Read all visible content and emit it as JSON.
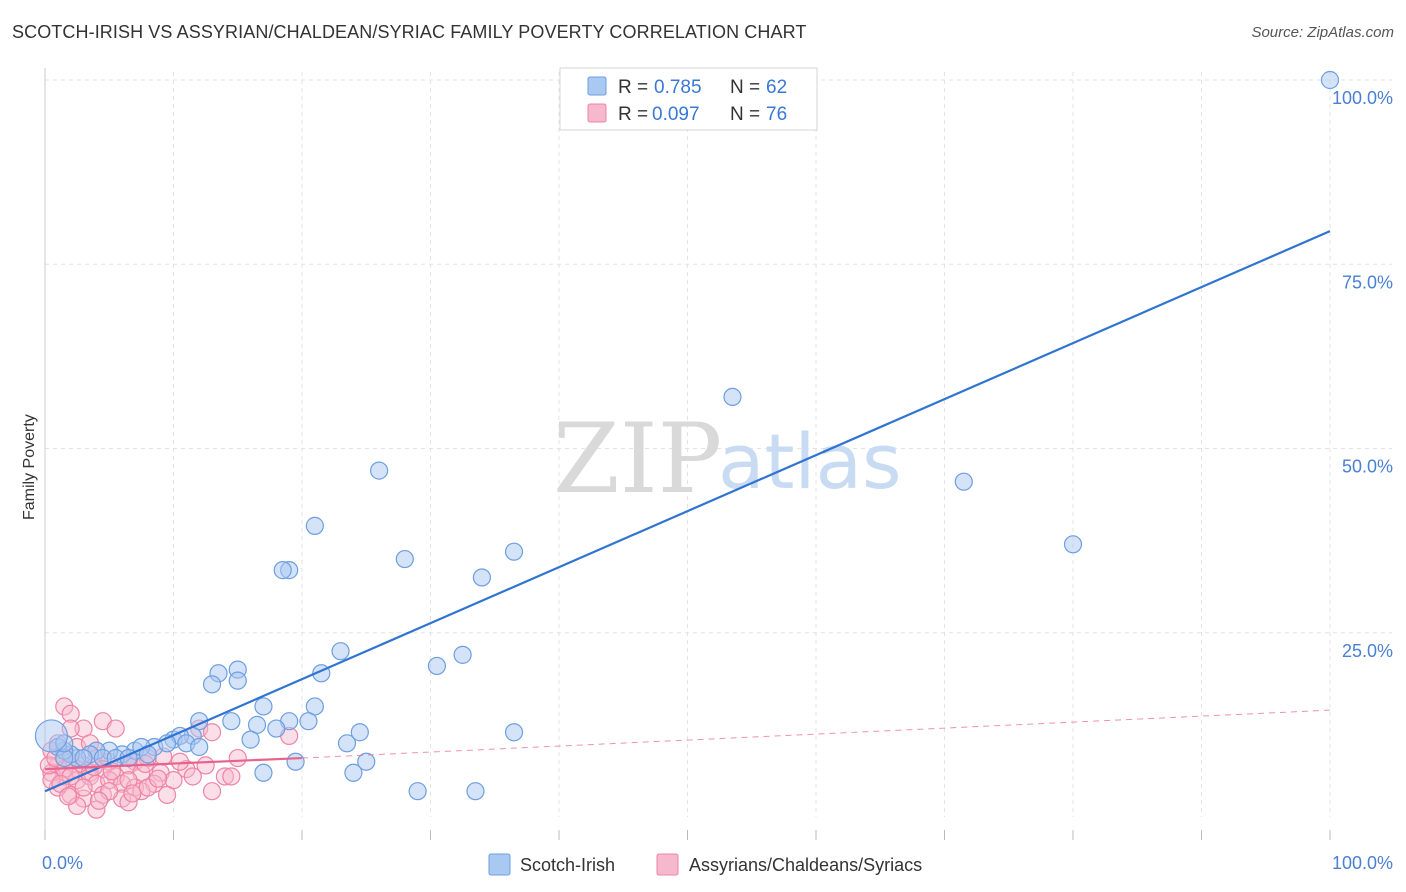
{
  "title": "SCOTCH-IRISH VS ASSYRIAN/CHALDEAN/SYRIAC FAMILY POVERTY CORRELATION CHART",
  "source": "Source: ZipAtlas.com",
  "watermark": {
    "zip": "ZIP",
    "atlas": "atlas"
  },
  "colors": {
    "blue_fill": "#a9c8f2",
    "blue_stroke": "#6d9fe0",
    "blue_line": "#2f74d0",
    "pink_fill": "#f6b8cc",
    "pink_stroke": "#ee84a6",
    "pink_line": "#e8628e",
    "grid": "#e3e3e3",
    "tick_text": "#4a7fd4"
  },
  "legend": {
    "r_label": "R =",
    "n_label": "N =",
    "blue": {
      "r": "0.785",
      "n": "62"
    },
    "pink": {
      "r": "0.097",
      "n": "76"
    }
  },
  "chart_data": {
    "type": "scatter",
    "title": "SCOTCH-IRISH VS ASSYRIAN/CHALDEAN/SYRIAC FAMILY POVERTY CORRELATION CHART",
    "xlabel": "",
    "ylabel": "Family Poverty",
    "xlim": [
      0,
      100
    ],
    "ylim": [
      0,
      100
    ],
    "x_tick_labels": [
      "0.0%",
      "100.0%"
    ],
    "y_tick_labels": [
      "100.0%",
      "75.0%",
      "50.0%",
      "25.0%"
    ],
    "series": [
      {
        "name": "Scotch-Irish",
        "color": "#a9c8f2",
        "trend": {
          "x": [
            0,
            100
          ],
          "y": [
            3.5,
            79.5
          ]
        },
        "points": [
          [
            100,
            100
          ],
          [
            53.5,
            57
          ],
          [
            26,
            47
          ],
          [
            71.5,
            45.5
          ],
          [
            21,
            39.5
          ],
          [
            80,
            37
          ],
          [
            36.5,
            36
          ],
          [
            19,
            33.5
          ],
          [
            18.5,
            33.5
          ],
          [
            28,
            35
          ],
          [
            34,
            32.5
          ],
          [
            23,
            22.5
          ],
          [
            32.5,
            22
          ],
          [
            30.5,
            20.5
          ],
          [
            15,
            20
          ],
          [
            13.5,
            19.5
          ],
          [
            21.5,
            19.5
          ],
          [
            15,
            18.5
          ],
          [
            13,
            18
          ],
          [
            17,
            15
          ],
          [
            21,
            15
          ],
          [
            12,
            13
          ],
          [
            14.5,
            13
          ],
          [
            16.5,
            12.5
          ],
          [
            19,
            13
          ],
          [
            20.5,
            13
          ],
          [
            18,
            12
          ],
          [
            24.5,
            11.5
          ],
          [
            36.5,
            11.5
          ],
          [
            11.5,
            11
          ],
          [
            10,
            10.5
          ],
          [
            10.5,
            11
          ],
          [
            8.5,
            9.5
          ],
          [
            9.5,
            10
          ],
          [
            11,
            10
          ],
          [
            12,
            9.5
          ],
          [
            16,
            10.5
          ],
          [
            23.5,
            10
          ],
          [
            7,
            9
          ],
          [
            7.5,
            9.5
          ],
          [
            8,
            8.5
          ],
          [
            6,
            8.5
          ],
          [
            5,
            9
          ],
          [
            4,
            9
          ],
          [
            3.5,
            8.5
          ],
          [
            2.5,
            8
          ],
          [
            2,
            8.5
          ],
          [
            1.5,
            9
          ],
          [
            1,
            9.5
          ],
          [
            1.5,
            8
          ],
          [
            3,
            8
          ],
          [
            4.5,
            8
          ],
          [
            5.5,
            8
          ],
          [
            6.5,
            8
          ],
          [
            17,
            6
          ],
          [
            19.5,
            7.5
          ],
          [
            25,
            7.5
          ],
          [
            24,
            6
          ],
          [
            29,
            3.5
          ],
          [
            33.5,
            3.5
          ],
          [
            1.5,
            10
          ],
          [
            0.5,
            11
          ]
        ]
      },
      {
        "name": "Assyrians/Chaldeans/Syriacs",
        "color": "#f6b8cc",
        "trend": {
          "x": [
            0,
            20
          ],
          "y": [
            6.5,
            8
          ]
        },
        "trend_dashed": {
          "x": [
            20,
            100
          ],
          "y": [
            8,
            14.5
          ]
        },
        "points": [
          [
            1.5,
            15
          ],
          [
            2,
            14
          ],
          [
            4.5,
            13
          ],
          [
            3,
            12
          ],
          [
            5.5,
            12
          ],
          [
            2,
            12
          ],
          [
            12,
            12
          ],
          [
            13,
            11.5
          ],
          [
            19,
            11
          ],
          [
            1,
            10
          ],
          [
            2.5,
            9.5
          ],
          [
            3.5,
            10
          ],
          [
            4,
            9
          ],
          [
            0.5,
            9
          ],
          [
            1.5,
            8.5
          ],
          [
            2,
            7.5
          ],
          [
            3,
            7
          ],
          [
            4,
            8
          ],
          [
            5,
            7.5
          ],
          [
            6.5,
            8
          ],
          [
            7,
            7.5
          ],
          [
            8,
            8
          ],
          [
            1,
            7
          ],
          [
            2.5,
            6.5
          ],
          [
            3.5,
            6
          ],
          [
            4.5,
            6.5
          ],
          [
            5.5,
            5.5
          ],
          [
            6.5,
            7
          ],
          [
            7.5,
            6
          ],
          [
            9,
            6
          ],
          [
            0.5,
            6
          ],
          [
            1.5,
            5.5
          ],
          [
            2.5,
            5
          ],
          [
            3.5,
            5.5
          ],
          [
            4,
            4.5
          ],
          [
            5,
            5
          ],
          [
            6,
            4.5
          ],
          [
            7,
            4
          ],
          [
            8.5,
            4.5
          ],
          [
            10,
            5
          ],
          [
            11,
            6.5
          ],
          [
            12.5,
            7
          ],
          [
            14,
            5.5
          ],
          [
            15,
            8
          ],
          [
            11.5,
            5.5
          ],
          [
            13,
            3.5
          ],
          [
            9.5,
            3
          ],
          [
            7.5,
            3.5
          ],
          [
            6,
            2.5
          ],
          [
            4.5,
            3
          ],
          [
            3,
            2.5
          ],
          [
            2,
            3
          ],
          [
            1,
            4
          ],
          [
            0.5,
            5
          ],
          [
            1.5,
            6.5
          ],
          [
            2,
            5.5
          ],
          [
            3,
            4
          ],
          [
            5,
            3.5
          ],
          [
            6.5,
            5
          ],
          [
            8,
            4
          ],
          [
            2.5,
            1.5
          ],
          [
            4,
            1
          ],
          [
            6.5,
            2
          ],
          [
            0.3,
            7
          ],
          [
            0.8,
            8
          ],
          [
            1.2,
            4.5
          ],
          [
            3.8,
            6.8
          ],
          [
            5.2,
            6.2
          ],
          [
            7.8,
            7.2
          ],
          [
            9.2,
            8.2
          ],
          [
            10.5,
            7.5
          ],
          [
            4.2,
            2.2
          ],
          [
            1.8,
            2.8
          ],
          [
            6.8,
            3.2
          ],
          [
            8.8,
            5.2
          ],
          [
            14.5,
            5.5
          ]
        ]
      }
    ],
    "legend_position": "top-center"
  },
  "bottom_legend": [
    "Scotch-Irish",
    "Assyrians/Chaldeans/Syriacs"
  ]
}
